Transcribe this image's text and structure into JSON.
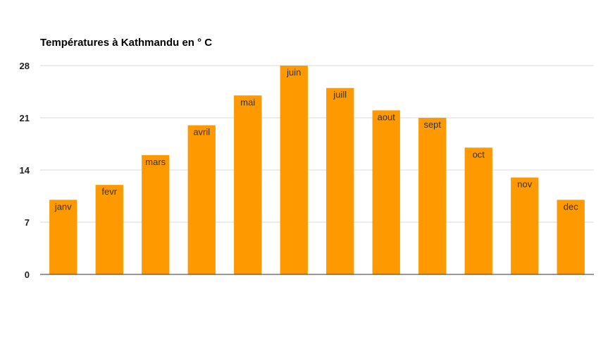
{
  "chart_data": {
    "type": "bar",
    "title": "Températures à Kathmandu en ° C",
    "xlabel": "",
    "ylabel": "",
    "categories": [
      "janv",
      "fevr",
      "mars",
      "avril",
      "mai",
      "juin",
      "juill",
      "aout",
      "sept",
      "oct",
      "nov",
      "dec"
    ],
    "values": [
      10,
      12,
      16,
      20,
      24,
      28,
      25,
      22,
      21,
      17,
      13,
      10
    ],
    "ylim": [
      0,
      28
    ],
    "yticks": [
      0,
      7,
      14,
      21,
      28
    ],
    "grid": true,
    "legend": "none",
    "data_labels": "category name inside top of bar",
    "colors": {
      "bar": "#ff9900",
      "grid": "#d9d9d9",
      "axis": "#333333"
    }
  }
}
